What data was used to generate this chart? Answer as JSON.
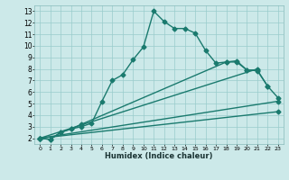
{
  "background_color": "#cce9e9",
  "grid_color": "#99cccc",
  "line_color": "#1a7a6e",
  "xlabel": "Humidex (Indice chaleur)",
  "xlim": [
    -0.5,
    23.5
  ],
  "ylim": [
    1.5,
    13.5
  ],
  "xticks": [
    0,
    1,
    2,
    3,
    4,
    5,
    6,
    7,
    8,
    9,
    10,
    11,
    12,
    13,
    14,
    15,
    16,
    17,
    18,
    19,
    20,
    21,
    22,
    23
  ],
  "yticks": [
    2,
    3,
    4,
    5,
    6,
    7,
    8,
    9,
    10,
    11,
    12,
    13
  ],
  "series": [
    {
      "x": [
        0,
        1,
        2,
        3,
        4,
        5,
        6,
        7,
        8,
        9,
        10,
        11,
        12,
        13,
        14,
        15,
        16,
        17,
        18,
        19,
        20,
        21,
        22
      ],
      "y": [
        2.0,
        1.9,
        2.5,
        2.8,
        3.0,
        3.3,
        5.2,
        7.0,
        7.5,
        8.8,
        9.9,
        13.0,
        12.1,
        11.5,
        11.5,
        11.1,
        9.6,
        8.5,
        8.6,
        8.6,
        7.9,
        7.9,
        6.5
      ],
      "marker": "D",
      "markersize": 2.5,
      "linewidth": 1.0
    },
    {
      "x": [
        0,
        1,
        2,
        3,
        4,
        18,
        19,
        20,
        21,
        22,
        23
      ],
      "y": [
        2.0,
        1.9,
        2.5,
        2.8,
        3.2,
        8.6,
        8.7,
        7.9,
        7.85,
        6.5,
        5.5
      ],
      "marker": "D",
      "markersize": 2.5,
      "linewidth": 1.0
    },
    {
      "x": [
        0,
        21
      ],
      "y": [
        2.0,
        8.0
      ],
      "marker": "D",
      "markersize": 2.5,
      "linewidth": 1.0
    },
    {
      "x": [
        0,
        23
      ],
      "y": [
        2.0,
        5.2
      ],
      "marker": "D",
      "markersize": 2.5,
      "linewidth": 1.0
    },
    {
      "x": [
        0,
        23
      ],
      "y": [
        2.0,
        4.3
      ],
      "marker": "D",
      "markersize": 2.5,
      "linewidth": 1.0
    }
  ]
}
